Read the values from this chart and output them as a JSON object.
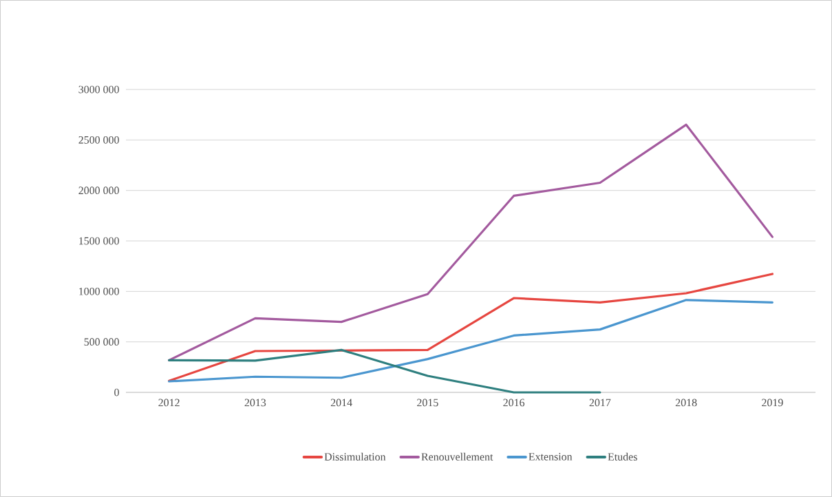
{
  "chart_data": {
    "type": "line",
    "categories": [
      "2012",
      "2013",
      "2014",
      "2015",
      "2016",
      "2017",
      "2018",
      "2019"
    ],
    "series": [
      {
        "name": "Dissimulation",
        "color": "#e64640",
        "values": [
          114000,
          409000,
          414000,
          420000,
          934000,
          891000,
          982000,
          1173000
        ]
      },
      {
        "name": "Renouvellement",
        "color": "#a35a9e",
        "values": [
          318000,
          734000,
          698000,
          973000,
          1947000,
          2076000,
          2651000,
          1540000
        ]
      },
      {
        "name": "Extension",
        "color": "#4a96cf",
        "values": [
          109000,
          155000,
          145000,
          330000,
          563000,
          623000,
          915000,
          891000
        ]
      },
      {
        "name": "Etudes",
        "color": "#2e7f7f",
        "values": [
          318000,
          314000,
          420000,
          164000,
          0,
          0,
          null,
          null
        ]
      }
    ],
    "ylim": [
      0,
      3000000
    ],
    "yticks": [
      {
        "value": 0,
        "label": "0"
      },
      {
        "value": 500000,
        "label": "500 000"
      },
      {
        "value": 1000000,
        "label": "1000 000"
      },
      {
        "value": 1500000,
        "label": "1500 000"
      },
      {
        "value": 2000000,
        "label": "2000 000"
      },
      {
        "value": 2500000,
        "label": "2500 000"
      },
      {
        "value": 3000000,
        "label": "3000 000"
      }
    ],
    "grid": "y",
    "legend": "bottom",
    "marker": "none",
    "line_style": "solid"
  }
}
